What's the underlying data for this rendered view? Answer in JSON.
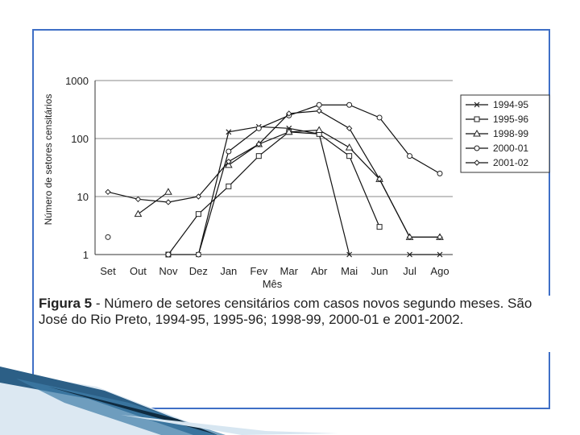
{
  "frame_color": "#3f6fc6",
  "caption": {
    "figure_label": "Figura 5",
    "text": " - Número de setores censitários com casos novos segundo meses. São José do Rio Preto, 1994-95, 1995-96; 1998-99, 2000-01 e 2001-2002."
  },
  "chart_data": {
    "type": "line",
    "title": "",
    "xlabel": "Mês",
    "ylabel": "Número de setores censitários",
    "y_scale": "log",
    "ylim": [
      1,
      1000
    ],
    "yticks": [
      "1",
      "10",
      "100",
      "1000"
    ],
    "grid": "horizontal",
    "legend_placement": "right",
    "categories": [
      "Set",
      "Out",
      "Nov",
      "Dez",
      "Jan",
      "Fev",
      "Mar",
      "Abr",
      "Mai",
      "Jun",
      "Jul",
      "Ago"
    ],
    "series": [
      {
        "name": "1994-95",
        "marker": "cross",
        "values": [
          null,
          null,
          null,
          1,
          130,
          160,
          150,
          120,
          1,
          null,
          1,
          1
        ]
      },
      {
        "name": "1995-96",
        "marker": "square",
        "values": [
          null,
          null,
          1,
          5,
          15,
          50,
          130,
          120,
          50,
          3,
          null,
          null
        ]
      },
      {
        "name": "1998-99",
        "marker": "triangle",
        "values": [
          null,
          5,
          12,
          null,
          35,
          80,
          130,
          140,
          70,
          20,
          2,
          2
        ]
      },
      {
        "name": "2000-01",
        "marker": "circle",
        "values": [
          2,
          null,
          1,
          1,
          60,
          150,
          250,
          380,
          380,
          230,
          50,
          25
        ]
      },
      {
        "name": "2001-02",
        "marker": "diamond",
        "values": [
          12,
          9,
          8,
          10,
          40,
          80,
          270,
          300,
          150,
          20,
          2,
          2
        ]
      }
    ]
  }
}
